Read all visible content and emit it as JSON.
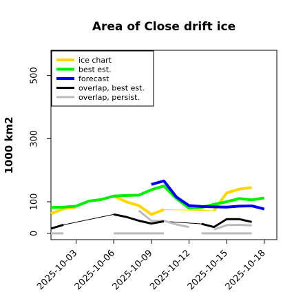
{
  "chart_data": {
    "type": "line",
    "title": "Area of Close drift ice",
    "ylabel": "1000 km2",
    "xlabel": "",
    "ylim": [
      -20,
      580
    ],
    "xlim": [
      "2025-10-01",
      "2025-10-19"
    ],
    "y_ticks": [
      0,
      100,
      300,
      500
    ],
    "y_tick_labels": [
      "0",
      "100",
      "300",
      "500"
    ],
    "x_ticks": [
      "2025-10-03",
      "2025-10-06",
      "2025-10-09",
      "2025-10-12",
      "2025-10-15",
      "2025-10-18"
    ],
    "x_tick_labels": [
      {
        "text": "2025-10-03",
        "color": "#000000"
      },
      {
        "text": "2025-10-06",
        "color": "#000000"
      },
      {
        "text": "2025-10-09",
        "color": "#228B22"
      },
      {
        "text": "2025-10-12",
        "color": "#000000"
      },
      {
        "text": "2025-10-15",
        "color": "#000000"
      },
      {
        "text": "2025-10-18",
        "color": "#000000"
      }
    ],
    "legend_position": "top-left",
    "grid": false,
    "series": [
      {
        "name": "ice chart",
        "color": "#FFD700",
        "width": 4,
        "segments": [
          [
            [
              "2025-10-01",
              62
            ],
            [
              "2025-10-02",
              78
            ],
            [
              "2025-10-03",
              83
            ]
          ],
          [
            [
              "2025-10-06",
              118
            ],
            [
              "2025-10-07",
              100
            ],
            [
              "2025-10-08",
              88
            ],
            [
              "2025-10-09",
              60
            ],
            [
              "2025-10-10",
              75
            ]
          ],
          [
            [
              "2025-10-14",
              72
            ],
            [
              "2025-10-15",
              128
            ],
            [
              "2025-10-16",
              140
            ],
            [
              "2025-10-17",
              145
            ]
          ]
        ]
      },
      {
        "name": "best est.",
        "color": "#00EE00",
        "width": 4,
        "segments": [
          [
            [
              "2025-10-01",
              82
            ],
            [
              "2025-10-02",
              83
            ],
            [
              "2025-10-03",
              86
            ],
            [
              "2025-10-04",
              102
            ],
            [
              "2025-10-05",
              107
            ],
            [
              "2025-10-06",
              118
            ],
            [
              "2025-10-07",
              120
            ],
            [
              "2025-10-08",
              121
            ],
            [
              "2025-10-09",
              138
            ],
            [
              "2025-10-10",
              150
            ],
            [
              "2025-10-11",
              110
            ],
            [
              "2025-10-12",
              80
            ],
            [
              "2025-10-13",
              82
            ],
            [
              "2025-10-14",
              92
            ],
            [
              "2025-10-15",
              100
            ],
            [
              "2025-10-16",
              110
            ],
            [
              "2025-10-17",
              106
            ],
            [
              "2025-10-18",
              112
            ]
          ]
        ]
      },
      {
        "name": "forecast",
        "color": "#0000EE",
        "width": 4,
        "segments": [
          [
            [
              "2025-10-09",
              155
            ],
            [
              "2025-10-10",
              166
            ],
            [
              "2025-10-11",
              115
            ],
            [
              "2025-10-12",
              88
            ],
            [
              "2025-10-13",
              85
            ],
            [
              "2025-10-14",
              84
            ],
            [
              "2025-10-15",
              83
            ],
            [
              "2025-10-16",
              86
            ],
            [
              "2025-10-17",
              87
            ],
            [
              "2025-10-18",
              77
            ]
          ]
        ]
      },
      {
        "name": "overlap, best est.",
        "color": "#000000",
        "width": 3,
        "segments": [
          [
            [
              "2025-10-01",
              15
            ],
            [
              "2025-10-02",
              27
            ]
          ],
          [
            [
              "2025-10-06",
              60
            ],
            [
              "2025-10-07",
              52
            ],
            [
              "2025-10-08",
              40
            ],
            [
              "2025-10-09",
              31
            ],
            [
              "2025-10-10",
              38
            ]
          ],
          [
            [
              "2025-10-13",
              30
            ],
            [
              "2025-10-14",
              20
            ],
            [
              "2025-10-15",
              45
            ],
            [
              "2025-10-16",
              45
            ],
            [
              "2025-10-17",
              36
            ]
          ]
        ]
      },
      {
        "name": "overlap, persist.",
        "color": "#BBBBBB",
        "width": 3,
        "segments": [
          [
            [
              "2025-10-01",
              0
            ],
            [
              "2025-10-02",
              0
            ]
          ],
          [
            [
              "2025-10-06",
              0
            ],
            [
              "2025-10-07",
              0
            ],
            [
              "2025-10-08",
              0
            ],
            [
              "2025-10-09",
              0
            ],
            [
              "2025-10-10",
              0
            ]
          ],
          [
            [
              "2025-10-13",
              0
            ],
            [
              "2025-10-14",
              0
            ],
            [
              "2025-10-15",
              0
            ],
            [
              "2025-10-16",
              0
            ],
            [
              "2025-10-17",
              0
            ]
          ],
          [
            [
              "2025-10-08",
              72
            ],
            [
              "2025-10-09",
              40
            ],
            [
              "2025-10-10",
              40
            ],
            [
              "2025-10-11",
              28
            ],
            [
              "2025-10-12",
              20
            ]
          ],
          [
            [
              "2025-10-14",
              12
            ],
            [
              "2025-10-15",
              26
            ],
            [
              "2025-10-16",
              27
            ],
            [
              "2025-10-17",
              25
            ]
          ]
        ]
      }
    ],
    "thin_lines": [
      {
        "color": "#000000",
        "points": [
          [
            "2025-10-02",
            27
          ],
          [
            "2025-10-06",
            60
          ]
        ]
      },
      {
        "color": "#000000",
        "points": [
          [
            "2025-10-10",
            38
          ],
          [
            "2025-10-13",
            30
          ]
        ]
      },
      {
        "color": "#FFD700",
        "points": [
          [
            "2025-10-10",
            75
          ],
          [
            "2025-10-14",
            72
          ]
        ]
      }
    ]
  }
}
